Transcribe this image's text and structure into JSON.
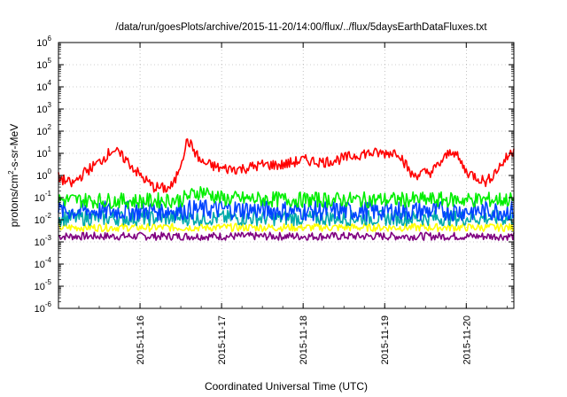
{
  "chart_data": {
    "type": "line",
    "title": "/data/run/goesPlots/archive/2015-11-20/14:00/flux/../flux/5daysEarthDataFluxes.txt",
    "xlabel": "Coordinated Universal Time (UTC)",
    "ylabel_parts": [
      "protons/cm",
      "2",
      "-s-sr-MeV"
    ],
    "y_scale": "log",
    "ylim": [
      1e-06,
      1000000.0
    ],
    "xlim": [
      "2015-11-15 00:00",
      "2015-11-20 14:00"
    ],
    "x_tick_labels": [
      "2015-11-16",
      "2015-11-17",
      "2015-11-18",
      "2015-11-19",
      "2015-11-20"
    ],
    "y_tick_labels": [
      {
        "base": "10",
        "exp": "-6"
      },
      {
        "base": "10",
        "exp": "-5"
      },
      {
        "base": "10",
        "exp": "-4"
      },
      {
        "base": "10",
        "exp": "-3"
      },
      {
        "base": "10",
        "exp": "-2"
      },
      {
        "base": "10",
        "exp": "-1"
      },
      {
        "base": "10",
        "exp": "0"
      },
      {
        "base": "10",
        "exp": "1"
      },
      {
        "base": "10",
        "exp": "2"
      },
      {
        "base": "10",
        "exp": "3"
      },
      {
        "base": "10",
        "exp": "4"
      },
      {
        "base": "10",
        "exp": "5"
      },
      {
        "base": "10",
        "exp": "6"
      }
    ],
    "grid": "dotted",
    "legend": "none",
    "series": [
      {
        "color": "#800080",
        "x": [
          "2015-11-15 00:00",
          "2015-11-16 00:00",
          "2015-11-17 00:00",
          "2015-11-18 00:00",
          "2015-11-19 00:00",
          "2015-11-20 00:00",
          "2015-11-20 14:00"
        ],
        "values": [
          0.0018,
          0.0018,
          0.0018,
          0.0018,
          0.0018,
          0.0018,
          0.0018
        ]
      },
      {
        "color": "#ffff00",
        "x": [
          "2015-11-15 00:00",
          "2015-11-16 00:00",
          "2015-11-17 00:00",
          "2015-11-18 00:00",
          "2015-11-19 00:00",
          "2015-11-20 00:00",
          "2015-11-20 14:00"
        ],
        "values": [
          0.0045,
          0.0045,
          0.0045,
          0.0045,
          0.0045,
          0.0045,
          0.0045
        ]
      },
      {
        "color": "#00aaaa",
        "x": [
          "2015-11-15 00:00",
          "2015-11-16 00:00",
          "2015-11-17 00:00",
          "2015-11-18 00:00",
          "2015-11-19 00:00",
          "2015-11-20 00:00",
          "2015-11-20 14:00"
        ],
        "values": [
          0.012,
          0.012,
          0.012,
          0.012,
          0.012,
          0.012,
          0.012
        ]
      },
      {
        "color": "#0044ff",
        "x": [
          "2015-11-15 00:00",
          "2015-11-16 00:00",
          "2015-11-17 00:00",
          "2015-11-18 00:00",
          "2015-11-19 00:00",
          "2015-11-20 00:00",
          "2015-11-20 14:00"
        ],
        "values": [
          0.025,
          0.025,
          0.03,
          0.025,
          0.025,
          0.025,
          0.025
        ]
      },
      {
        "color": "#00ee00",
        "x": [
          "2015-11-15 00:00",
          "2015-11-16 00:00",
          "2015-11-16 12:00",
          "2015-11-16 18:00",
          "2015-11-17 00:00",
          "2015-11-18 00:00",
          "2015-11-19 00:00",
          "2015-11-20 00:00",
          "2015-11-20 14:00"
        ],
        "values": [
          0.08,
          0.07,
          0.08,
          0.2,
          0.09,
          0.08,
          0.08,
          0.08,
          0.08
        ]
      },
      {
        "color": "#ff0000",
        "x": [
          "2015-11-15 00:00",
          "2015-11-15 04:00",
          "2015-11-15 08:00",
          "2015-11-15 12:00",
          "2015-11-15 16:00",
          "2015-11-15 20:00",
          "2015-11-16 00:00",
          "2015-11-16 04:00",
          "2015-11-16 08:00",
          "2015-11-16 10:00",
          "2015-11-16 14:00",
          "2015-11-16 18:00",
          "2015-11-17 00:00",
          "2015-11-17 06:00",
          "2015-11-17 12:00",
          "2015-11-17 18:00",
          "2015-11-18 00:00",
          "2015-11-18 06:00",
          "2015-11-18 12:00",
          "2015-11-18 18:00",
          "2015-11-19 00:00",
          "2015-11-19 04:00",
          "2015-11-19 08:00",
          "2015-11-19 14:00",
          "2015-11-19 20:00",
          "2015-11-20 00:00",
          "2015-11-20 06:00",
          "2015-11-20 14:00"
        ],
        "values": [
          0.8,
          0.4,
          1.5,
          4,
          15,
          5,
          1,
          0.3,
          0.25,
          0.4,
          40,
          4,
          2,
          2,
          3,
          3,
          5,
          4,
          6,
          10,
          10,
          12,
          1,
          1.5,
          15,
          1.5,
          0.5,
          15
        ]
      }
    ]
  }
}
